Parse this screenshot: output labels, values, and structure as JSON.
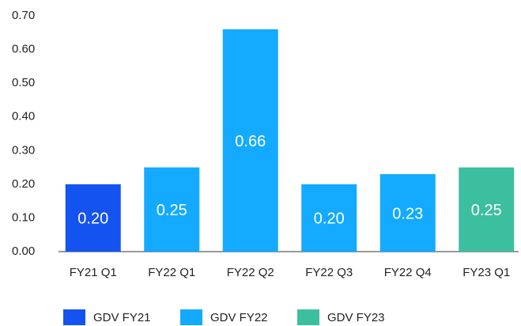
{
  "chart_data": {
    "type": "bar",
    "categories": [
      "FY21 Q1",
      "FY22 Q1",
      "FY22 Q2",
      "FY22 Q3",
      "FY22 Q4",
      "FY23 Q1"
    ],
    "series": [
      {
        "name": "GDV FY21",
        "color": "#1553f0",
        "values": [
          0.2,
          null,
          null,
          null,
          null,
          null
        ],
        "value_labels": [
          "0.20",
          null,
          null,
          null,
          null,
          null
        ]
      },
      {
        "name": "GDV FY22",
        "color": "#13aaff",
        "values": [
          null,
          0.25,
          0.66,
          0.2,
          0.23,
          null
        ],
        "value_labels": [
          null,
          "0.25",
          "0.66",
          "0.20",
          "0.23",
          null
        ]
      },
      {
        "name": "GDV FY23",
        "color": "#3cbf9e",
        "values": [
          null,
          null,
          null,
          null,
          null,
          0.25
        ],
        "value_labels": [
          null,
          null,
          null,
          null,
          null,
          "0.25"
        ]
      }
    ],
    "ylim": [
      0,
      0.7
    ],
    "yticks": [
      {
        "value": 0,
        "label": "0.00"
      },
      {
        "value": 0.1,
        "label": "0.10"
      },
      {
        "value": 0.2,
        "label": "0.20"
      },
      {
        "value": 0.3,
        "label": "0.30"
      },
      {
        "value": 0.4,
        "label": "0.40"
      },
      {
        "value": 0.5,
        "label": "0.50"
      },
      {
        "value": 0.6,
        "label": "0.60"
      },
      {
        "value": 0.7,
        "label": "0.70"
      }
    ],
    "grid": false
  }
}
